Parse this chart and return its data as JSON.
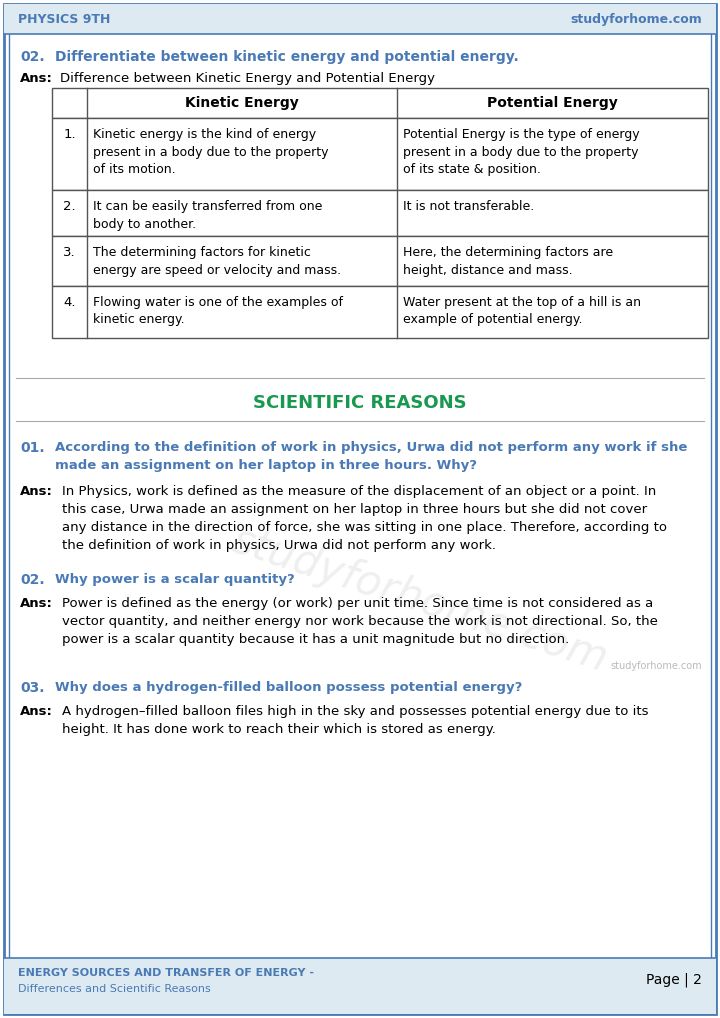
{
  "header_left": "PHYSICS 9TH",
  "header_right": "studyforhome.com",
  "header_color": "#4a7ab5",
  "q2_label": "02.",
  "q2_text": "Differentiate between kinetic energy and potential energy.",
  "ans_label": "Ans:",
  "ans_intro": "Difference between Kinetic Energy and Potential Energy",
  "table_col1_header": "Kinetic Energy",
  "table_col2_header": "Potential Energy",
  "table_rows": [
    {
      "num": "1.",
      "col1": "Kinetic energy is the kind of energy\npresent in a body due to the property\nof its motion.",
      "col2": "Potential Energy is the type of energy\npresent in a body due to the property\nof its state & position."
    },
    {
      "num": "2.",
      "col1": "It can be easily transferred from one\nbody to another.",
      "col2": "It is not transferable."
    },
    {
      "num": "3.",
      "col1": "The determining factors for kinetic\nenergy are speed or velocity and mass.",
      "col2": "Here, the determining factors are\nheight, distance and mass."
    },
    {
      "num": "4.",
      "col1": "Flowing water is one of the examples of\nkinetic energy.",
      "col2": "Water present at the top of a hill is an\nexample of potential energy."
    }
  ],
  "section_title": "SCIENTIFIC REASONS",
  "section_color": "#1a9850",
  "q1_sr_label": "01.",
  "q1_sr_text": "According to the definition of work in physics, Urwa did not perform any work if she\nmade an assignment on her laptop in three hours. Why?",
  "q1_sr_ans_label": "Ans:",
  "q1_sr_ans": "In Physics, work is defined as the measure of the displacement of an object or a point. In\nthis case, Urwa made an assignment on her laptop in three hours but she did not cover\nany distance in the direction of force, she was sitting in one place. Therefore, according to\nthe definition of work in physics, Urwa did not perform any work.",
  "q2_sr_label": "02.",
  "q2_sr_text": "Why power is a scalar quantity?",
  "q2_sr_ans_label": "Ans:",
  "q2_sr_ans": "Power is defined as the energy (or work) per unit time. Since time is not considered as a\nvector quantity, and neither energy nor work because the work is not directional. So, the\npower is a scalar quantity because it has a unit magnitude but no direction.",
  "q3_sr_label": "03.",
  "q3_sr_text": "Why does a hydrogen-filled balloon possess potential energy?",
  "q3_sr_ans_label": "Ans:",
  "q3_sr_ans": "A hydrogen–filled balloon files high in the sky and possesses potential energy due to its\nheight. It has done work to reach their which is stored as energy.",
  "footer_left_top": "ENERGY SOURCES AND TRANSFER OF ENERGY -",
  "footer_left_bot": "Differences and Scientific Reasons",
  "footer_right": "Page | 2",
  "footer_color": "#4a7ab5",
  "border_color": "#4a7ab5",
  "bg_color": "#ffffff",
  "text_color": "#000000",
  "question_color": "#4a7ab5",
  "watermark_color": "#cccccc",
  "table_border_color": "#555555"
}
